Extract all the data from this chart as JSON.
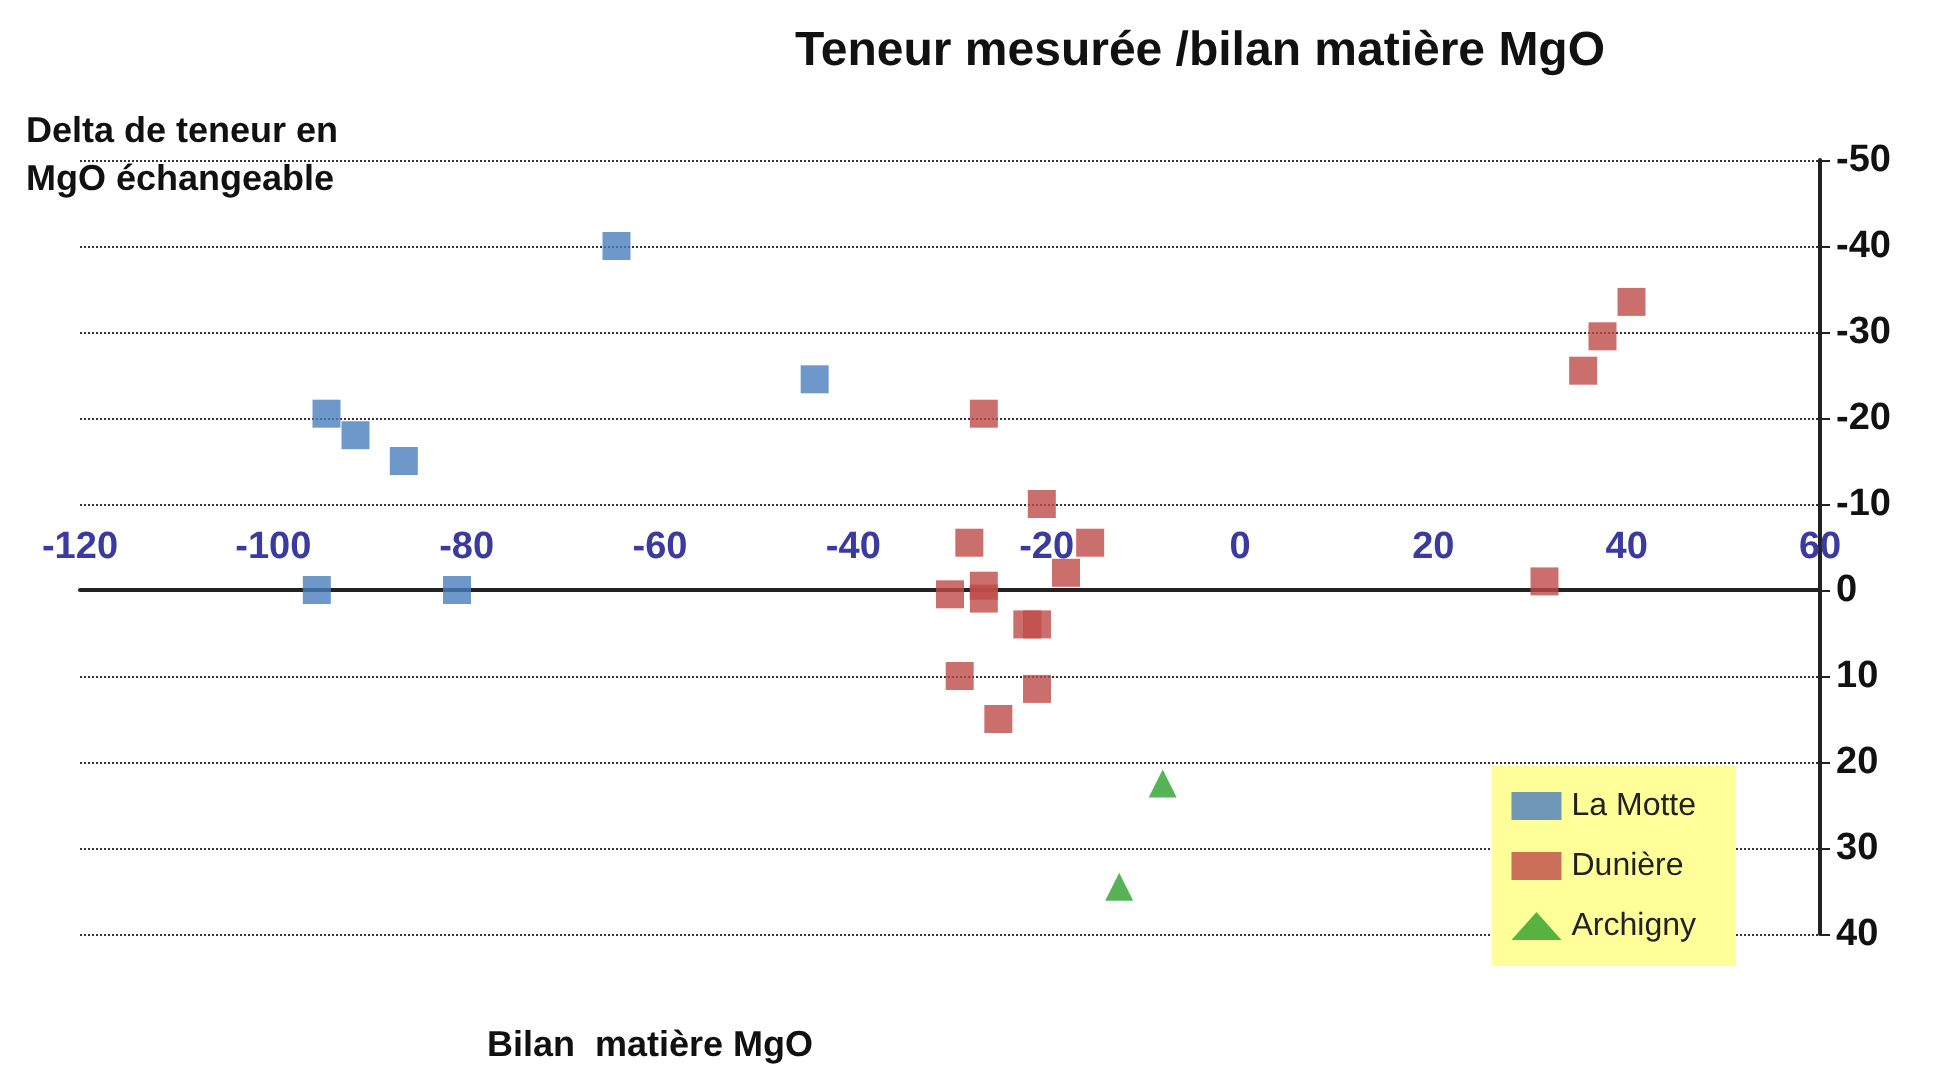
{
  "chart_data": {
    "type": "scatter",
    "title": "Teneur mesurée /bilan matière MgO",
    "xlabel": "Bilan  matière MgO",
    "ylabel": "Delta de teneur en MgO échangeable",
    "xlim": [
      -120,
      60
    ],
    "xticks": [
      -120,
      -100,
      -80,
      -60,
      -40,
      -20,
      0,
      20,
      40,
      60
    ],
    "ylim": [
      40,
      -50
    ],
    "yticks": [
      -50,
      -40,
      -30,
      -20,
      -10,
      0,
      10,
      20,
      30,
      40
    ],
    "grid": "y",
    "legend": "bottom right",
    "series": [
      {
        "name": "La Motte",
        "color": "#4a7ebb",
        "marker": "square",
        "x": [
          -64.5,
          -44,
          -94.5,
          -91.5,
          -86.5,
          -95.5,
          -81
        ],
        "values": [
          -40,
          -24.5,
          -20.5,
          -18,
          -15,
          0,
          0
        ]
      },
      {
        "name": "Dunière",
        "color": "#be4b48",
        "marker": "square",
        "x": [
          -26.5,
          -28,
          -20.5,
          -15.5,
          -18,
          -30,
          -26.5,
          -26.5,
          -22,
          -21,
          -29,
          -21,
          -25,
          31.5,
          35.5,
          37.5,
          40.5
        ],
        "values": [
          -20.5,
          -5.5,
          -10,
          -5.5,
          -2,
          0.5,
          -0.5,
          1,
          4,
          4,
          10,
          11.5,
          15,
          -1,
          -25.5,
          -29.5,
          -33.5
        ]
      },
      {
        "name": "Archigny",
        "color": "#2ca02c",
        "marker": "triangle",
        "x": [
          -8,
          -12.5
        ],
        "values": [
          22.5,
          34.5
        ]
      }
    ]
  }
}
